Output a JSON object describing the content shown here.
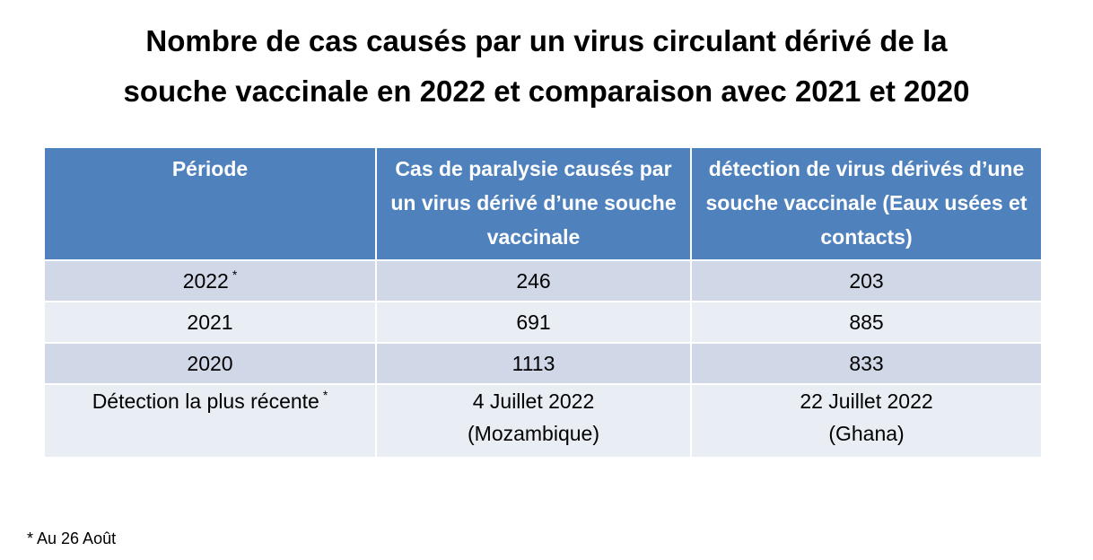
{
  "header": {
    "title_lines": [
      "Nombre de cas causés par un virus circulant dérivé de la",
      "souche vaccinale en 2022 et comparaison avec 2021 et 2020"
    ]
  },
  "table": {
    "columns": [
      "Période",
      "Cas de paralysie causés par un virus dérivé d’une souche vaccinale",
      "détection de virus dérivés d’une souche vaccinale (Eaux usées et contacts)"
    ],
    "rows": [
      {
        "label": "2022",
        "note": "*",
        "cells": [
          [
            "246"
          ],
          [
            "203"
          ]
        ]
      },
      {
        "label": "2021",
        "cells": [
          [
            "691"
          ],
          [
            "885"
          ]
        ]
      },
      {
        "label": "2020",
        "cells": [
          [
            "1113"
          ],
          [
            "833"
          ]
        ]
      },
      {
        "label": "Détection la plus récente",
        "note": "*",
        "cells": [
          [
            "4 Juillet 2022",
            "(Mozambique)"
          ],
          [
            "22 Juillet 2022",
            "(Ghana)"
          ]
        ]
      }
    ]
  },
  "footnote": "* Au 26 Août"
}
